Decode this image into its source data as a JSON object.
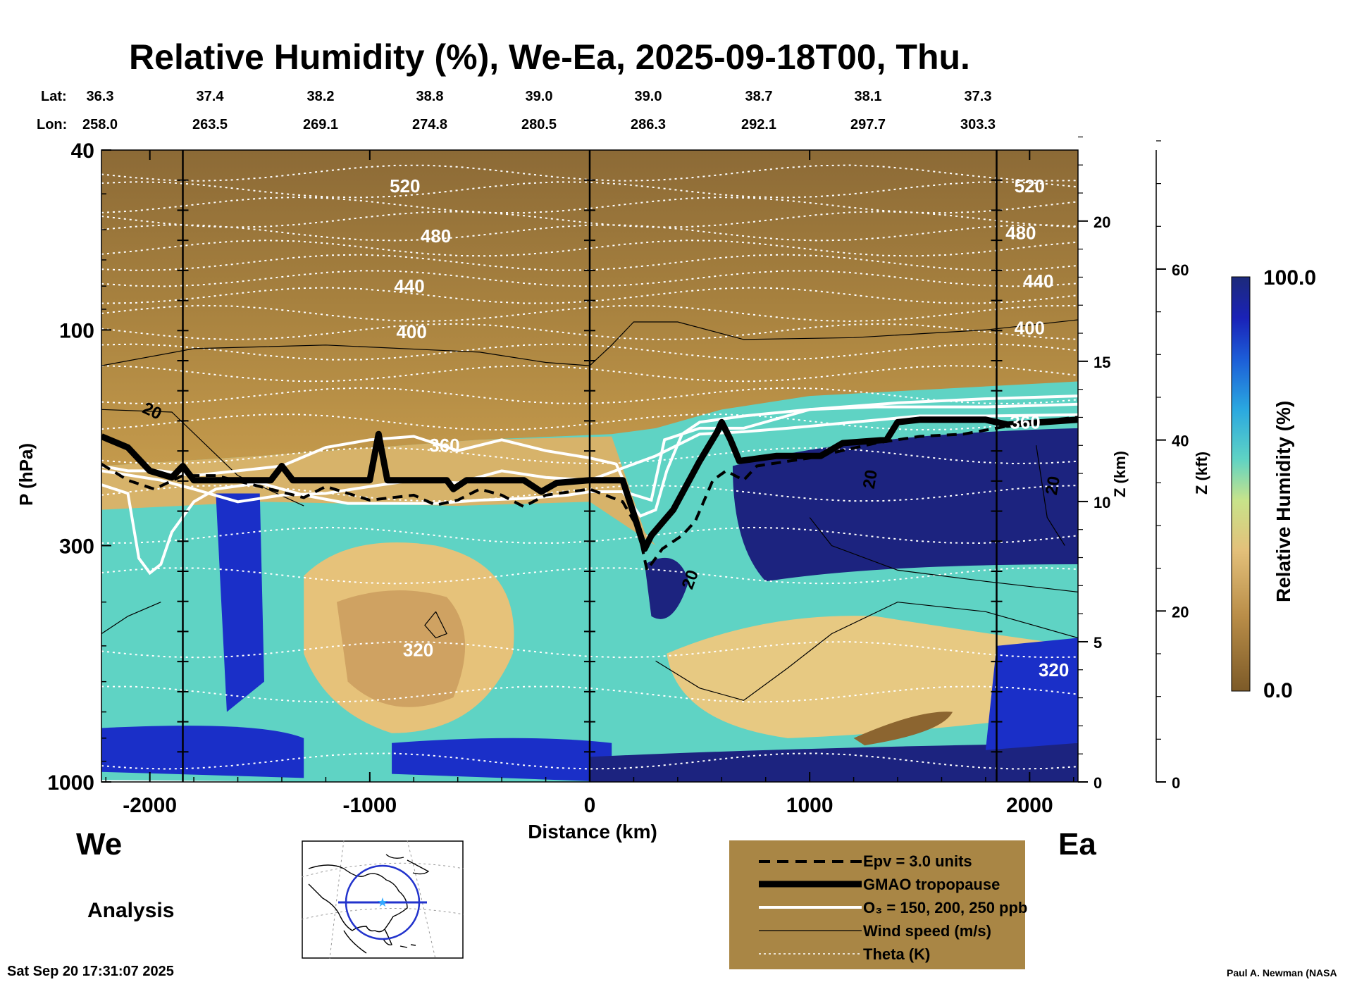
{
  "header": {
    "title": "Relative Humidity (%), We-Ea, 2025-09-18T00, Thu.",
    "lat_label": "Lat:",
    "lon_label": "Lon:",
    "lats": [
      "36.3",
      "37.4",
      "38.2",
      "38.8",
      "39.0",
      "39.0",
      "38.7",
      "38.1",
      "37.3"
    ],
    "lons": [
      "258.0",
      "263.5",
      "269.1",
      "274.8",
      "280.5",
      "286.3",
      "292.1",
      "297.7",
      "303.3"
    ]
  },
  "axes": {
    "ylabel": "P (hPa)",
    "xlabel": "Distance (km)",
    "z_km_label": "Z (km)",
    "z_kft_label": "Z (kft)",
    "colorbar_label": "Relative Humidity (%)",
    "colorbar_max": "100.0",
    "colorbar_min": "0.0"
  },
  "footer": {
    "west": "We",
    "east": "Ea",
    "analysis": "Analysis",
    "timestamp": "Sat Sep 20 17:31:07 2025",
    "credit": "Paul A. Newman (NASA"
  },
  "legend": {
    "epv": "Epv = 3.0 units",
    "tropopause": "GMAO tropopause",
    "ozone": "O₃ = 150, 200, 250 ppb",
    "wind": "Wind speed (m/s)",
    "theta": "Theta (K)"
  },
  "chart_data": {
    "type": "heatmap",
    "title": "Relative Humidity (%), We-Ea, 2025-09-18T00, Thu.",
    "xlabel": "Distance (km)",
    "ylabel": "P (hPa)",
    "xlim": [
      -2220,
      2220
    ],
    "ylim": [
      1000,
      40
    ],
    "y_scale": "log",
    "x_ticks": [
      -2000,
      -1000,
      0,
      1000,
      2000
    ],
    "y_ticks": [
      40,
      100,
      300,
      1000
    ],
    "z_km_ticks": [
      0,
      5,
      10,
      15,
      20
    ],
    "z_kft_ticks": [
      0,
      20,
      40,
      60
    ],
    "colorbar_range": [
      0.0,
      100.0
    ],
    "vertical_lines_km": [
      -1850,
      0,
      1850
    ],
    "theta_labels": [
      {
        "value": "520",
        "x": -840,
        "p": 48
      },
      {
        "value": "480",
        "x": -700,
        "p": 62
      },
      {
        "value": "440",
        "x": -820,
        "p": 80
      },
      {
        "value": "400",
        "x": -810,
        "p": 101
      },
      {
        "value": "360",
        "x": -660,
        "p": 180
      },
      {
        "value": "320",
        "x": -780,
        "p": 510
      },
      {
        "value": "520",
        "x": 2000,
        "p": 48
      },
      {
        "value": "480",
        "x": 1960,
        "p": 61
      },
      {
        "value": "440",
        "x": 2040,
        "p": 78
      },
      {
        "value": "400",
        "x": 2000,
        "p": 99
      },
      {
        "value": "360",
        "x": 1980,
        "p": 160
      },
      {
        "value": "320",
        "x": 2110,
        "p": 565
      }
    ],
    "wind_labels": [
      {
        "value": "20",
        "x": -2000,
        "p": 155,
        "angle": 25
      },
      {
        "value": "20",
        "x": 1300,
        "p": 215,
        "angle": -80
      },
      {
        "value": "20",
        "x": 2130,
        "p": 222,
        "angle": -80
      },
      {
        "value": "20",
        "x": 480,
        "p": 360,
        "angle": -70
      }
    ],
    "tropopause": [
      [
        -2220,
        172
      ],
      [
        -2100,
        182
      ],
      [
        -2000,
        205
      ],
      [
        -1900,
        212
      ],
      [
        -1850,
        200
      ],
      [
        -1800,
        215
      ],
      [
        -1600,
        215
      ],
      [
        -1450,
        215
      ],
      [
        -1400,
        200
      ],
      [
        -1350,
        215
      ],
      [
        -1000,
        215
      ],
      [
        -960,
        170
      ],
      [
        -920,
        215
      ],
      [
        -650,
        215
      ],
      [
        -620,
        225
      ],
      [
        -560,
        215
      ],
      [
        -300,
        215
      ],
      [
        -220,
        228
      ],
      [
        -150,
        218
      ],
      [
        0,
        215
      ],
      [
        150,
        215
      ],
      [
        200,
        255
      ],
      [
        250,
        305
      ],
      [
        280,
        285
      ],
      [
        380,
        250
      ],
      [
        500,
        195
      ],
      [
        580,
        168
      ],
      [
        600,
        160
      ],
      [
        640,
        175
      ],
      [
        680,
        195
      ],
      [
        850,
        190
      ],
      [
        1050,
        190
      ],
      [
        1150,
        178
      ],
      [
        1350,
        175
      ],
      [
        1400,
        160
      ],
      [
        1500,
        158
      ],
      [
        1800,
        158
      ],
      [
        1900,
        162
      ],
      [
        2220,
        158
      ]
    ],
    "epv_3": [
      [
        -2220,
        198
      ],
      [
        -2100,
        215
      ],
      [
        -1980,
        225
      ],
      [
        -1850,
        210
      ],
      [
        -1700,
        210
      ],
      [
        -1500,
        222
      ],
      [
        -1300,
        235
      ],
      [
        -1200,
        222
      ],
      [
        -1000,
        238
      ],
      [
        -800,
        232
      ],
      [
        -700,
        244
      ],
      [
        -600,
        238
      ],
      [
        -500,
        225
      ],
      [
        -400,
        232
      ],
      [
        -300,
        246
      ],
      [
        -200,
        232
      ],
      [
        0,
        225
      ],
      [
        150,
        240
      ],
      [
        220,
        275
      ],
      [
        260,
        340
      ],
      [
        330,
        305
      ],
      [
        420,
        285
      ],
      [
        480,
        265
      ],
      [
        560,
        215
      ],
      [
        620,
        205
      ],
      [
        700,
        215
      ],
      [
        760,
        200
      ],
      [
        1000,
        192
      ],
      [
        1300,
        178
      ],
      [
        1500,
        172
      ],
      [
        1700,
        170
      ],
      [
        2000,
        160
      ],
      [
        2220,
        156
      ]
    ],
    "ozone_150": [
      [
        -2220,
        220
      ],
      [
        -2100,
        230
      ],
      [
        -2050,
        320
      ],
      [
        -2000,
        345
      ],
      [
        -1950,
        330
      ],
      [
        -1900,
        280
      ],
      [
        -1800,
        240
      ],
      [
        -1700,
        225
      ],
      [
        -1500,
        218
      ],
      [
        -1300,
        232
      ],
      [
        -1100,
        242
      ],
      [
        -900,
        242
      ],
      [
        -700,
        242
      ],
      [
        -500,
        238
      ],
      [
        -300,
        236
      ],
      [
        -100,
        232
      ],
      [
        0,
        228
      ],
      [
        150,
        228
      ],
      [
        230,
        258
      ],
      [
        300,
        250
      ],
      [
        350,
        205
      ],
      [
        420,
        170
      ],
      [
        500,
        160
      ],
      [
        700,
        155
      ],
      [
        1000,
        150
      ],
      [
        1400,
        145
      ],
      [
        1800,
        142
      ],
      [
        2220,
        140
      ]
    ],
    "ozone_200": [
      [
        -2220,
        200
      ],
      [
        -2100,
        205
      ],
      [
        -1950,
        205
      ],
      [
        -1800,
        210
      ],
      [
        -1600,
        205
      ],
      [
        -1400,
        200
      ],
      [
        -1200,
        182
      ],
      [
        -1000,
        175
      ],
      [
        -800,
        172
      ],
      [
        -600,
        185
      ],
      [
        -400,
        175
      ],
      [
        -200,
        185
      ],
      [
        0,
        192
      ],
      [
        120,
        198
      ],
      [
        180,
        230
      ],
      [
        280,
        238
      ],
      [
        340,
        175
      ],
      [
        500,
        165
      ],
      [
        700,
        165
      ],
      [
        1000,
        150
      ],
      [
        1300,
        148
      ],
      [
        1800,
        148
      ],
      [
        2220,
        146
      ]
    ],
    "ozone_250": [
      [
        -2220,
        205
      ],
      [
        -1950,
        215
      ],
      [
        -1800,
        225
      ],
      [
        -1600,
        240
      ],
      [
        -1400,
        232
      ],
      [
        -1200,
        230
      ],
      [
        -1000,
        222
      ],
      [
        -800,
        215
      ],
      [
        -600,
        218
      ],
      [
        -400,
        205
      ],
      [
        -200,
        212
      ],
      [
        0,
        215
      ],
      [
        200,
        198
      ],
      [
        300,
        190
      ],
      [
        500,
        170
      ],
      [
        700,
        168
      ],
      [
        900,
        165
      ],
      [
        1200,
        160
      ],
      [
        1500,
        155
      ],
      [
        1800,
        155
      ],
      [
        2220,
        154
      ]
    ],
    "theta_p": [
      45,
      49,
      53,
      57,
      61,
      66,
      71,
      77,
      84,
      92,
      101,
      112,
      125,
      140,
      160,
      190,
      230,
      285,
      350,
      510,
      640,
      900
    ]
  }
}
